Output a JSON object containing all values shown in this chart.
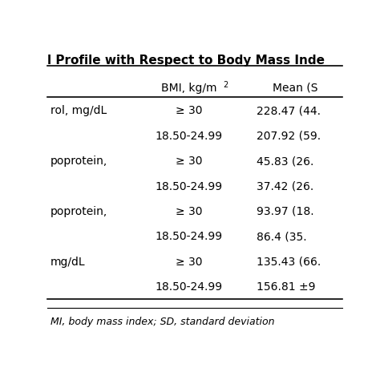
{
  "title": "l Profile with Respect to Body Mass Inde",
  "header_col2": "BMI, kg/m",
  "header_col2_sup": "2",
  "header_col3": "Mean (S",
  "rows": [
    [
      "rol, mg/dL",
      "≥ 30",
      "228.47 (44."
    ],
    [
      "",
      "18.50-24.99",
      "207.92 (59."
    ],
    [
      "poprotein,",
      "≥ 30",
      "45.83 (26."
    ],
    [
      "",
      "18.50-24.99",
      "37.42 (26."
    ],
    [
      "poprotein,",
      "≥ 30",
      "93.97 (18."
    ],
    [
      "",
      "18.50-24.99",
      "86.4 (35."
    ],
    [
      "mg/dL",
      "≥ 30",
      "135.43 (66."
    ],
    [
      "",
      "18.50-24.99",
      "156.81 ±9"
    ]
  ],
  "footnote": "MI, body mass index; SD, standard deviation",
  "bg_color": "#ffffff",
  "text_color": "#000000",
  "font_size": 10,
  "title_font_size": 11
}
